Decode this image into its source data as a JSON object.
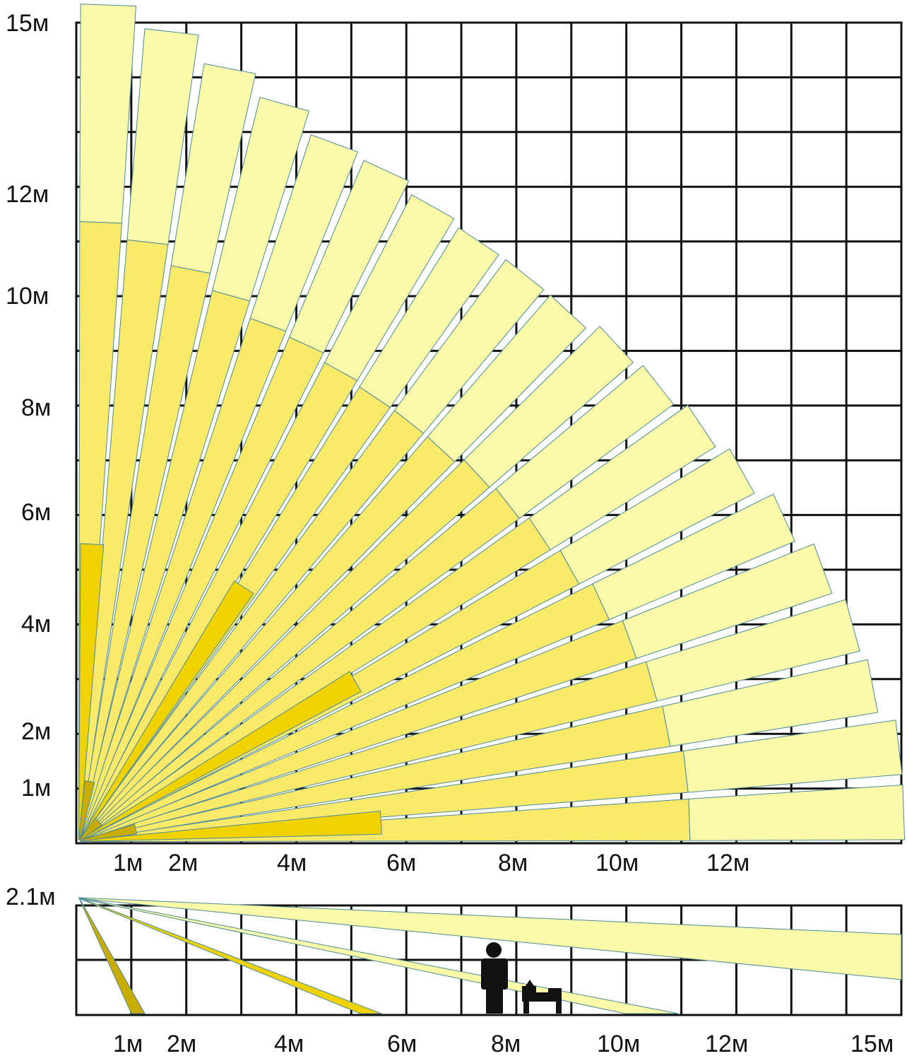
{
  "top_view": {
    "y_labels": [
      "15м",
      "12м",
      "10м",
      "8м",
      "6м",
      "4м",
      "2м",
      "1м"
    ],
    "x_labels": [
      "1м",
      "2м",
      "4м",
      "6м",
      "8м",
      "10м",
      "12м"
    ]
  },
  "side_view": {
    "height_label": "2.1м",
    "x_labels": [
      "1м",
      "2м",
      "4м",
      "6м",
      "8м",
      "10м",
      "12м",
      "15м"
    ]
  },
  "colors": {
    "far_zone": "#fafaa8",
    "mid_zone": "#fbe96a",
    "near_zone": "#f0d200",
    "close_zone": "#c8ac00",
    "beam_outline": "#4a8a9a",
    "grid": "#111111",
    "silhouette": "#111111"
  },
  "icons": [
    "person-silhouette-icon",
    "dog-silhouette-icon"
  ]
}
